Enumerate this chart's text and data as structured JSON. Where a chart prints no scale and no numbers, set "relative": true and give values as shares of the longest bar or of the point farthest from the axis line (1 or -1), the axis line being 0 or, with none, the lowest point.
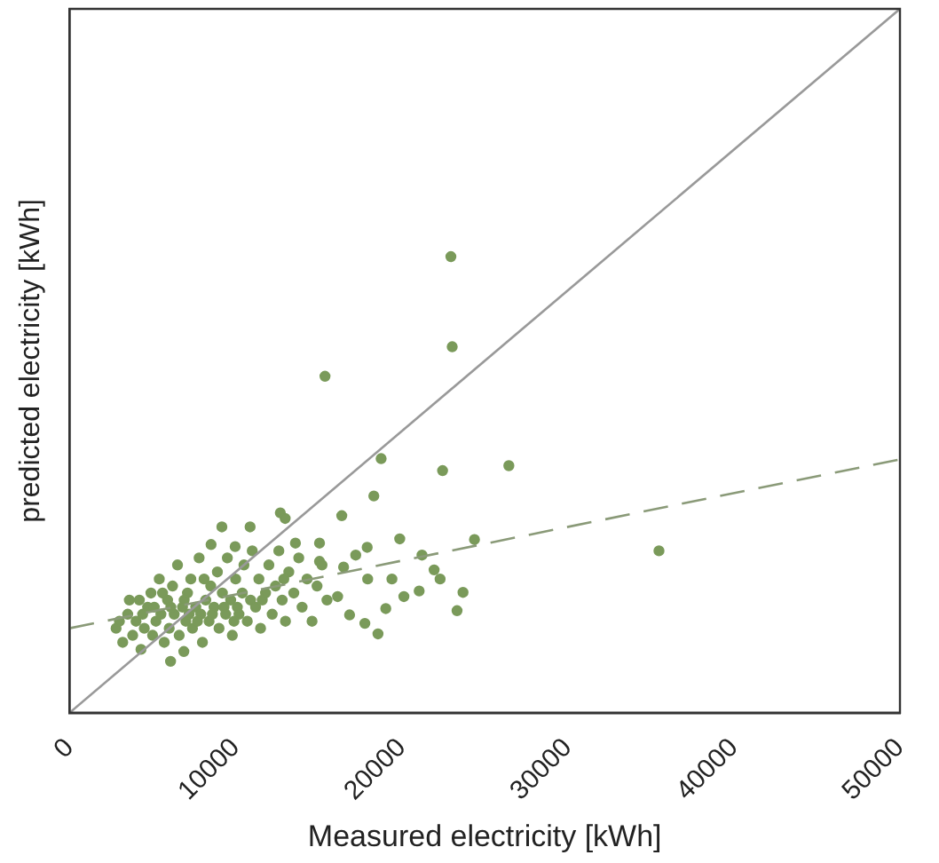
{
  "chart_data": {
    "type": "scatter",
    "xlabel": "Measured electricity [kWh]",
    "ylabel": "predicted electricity [kWh]",
    "relative": true,
    "tick_labels": "x",
    "xlim": [
      0,
      50000
    ],
    "xticks": [
      0,
      10000,
      20000,
      30000,
      40000,
      50000
    ],
    "series": [
      {
        "type": "scatter",
        "color": "#7a9a5a",
        "marker": "circle",
        "x": [
          22960,
          23040,
          15380,
          18760,
          22460,
          26450,
          18320,
          16390,
          35490,
          24380,
          19880,
          17920,
          12690,
          12980,
          9170,
          10870,
          23330,
          23690,
          18570,
          6080,
          6880,
          13600,
          8520,
          9970,
          15050,
          21220,
          21950,
          22310,
          21050,
          20130,
          19040,
          17780,
          16860,
          16140,
          17950,
          19410,
          16500,
          15050,
          17230,
          2800,
          3200,
          3500,
          3800,
          4000,
          4200,
          4300,
          4500,
          4700,
          4900,
          5000,
          5200,
          5400,
          5500,
          5700,
          5900,
          6000,
          6200,
          6300,
          6500,
          6600,
          6800,
          7000,
          7100,
          7300,
          7400,
          7600,
          7800,
          7900,
          8000,
          8200,
          8400,
          8500,
          8700,
          8900,
          9000,
          9200,
          9400,
          9500,
          9700,
          9800,
          10000,
          10200,
          10400,
          10500,
          10700,
          10900,
          11000,
          11200,
          11400,
          11500,
          11800,
          12000,
          12200,
          12400,
          12600,
          12800,
          13000,
          13200,
          13500,
          13800,
          14000,
          14300,
          14600,
          14900,
          15200,
          15500,
          5600,
          6100,
          6900,
          7700,
          8600,
          9300,
          10100,
          4400,
          3000,
          3600,
          5100,
          7200,
          8100,
          9900,
          11600,
          12900
        ],
        "values": [
          0.648,
          0.52,
          0.478,
          0.361,
          0.344,
          0.351,
          0.308,
          0.28,
          0.23,
          0.246,
          0.247,
          0.235,
          0.284,
          0.276,
          0.264,
          0.264,
          0.145,
          0.171,
          0.112,
          0.073,
          0.087,
          0.241,
          0.239,
          0.236,
          0.241,
          0.224,
          0.203,
          0.19,
          0.173,
          0.165,
          0.148,
          0.127,
          0.139,
          0.165,
          0.19,
          0.19,
          0.207,
          0.215,
          0.224,
          0.12,
          0.1,
          0.14,
          0.11,
          0.13,
          0.16,
          0.09,
          0.12,
          0.15,
          0.17,
          0.11,
          0.13,
          0.19,
          0.14,
          0.1,
          0.16,
          0.12,
          0.18,
          0.14,
          0.21,
          0.11,
          0.15,
          0.13,
          0.17,
          0.19,
          0.12,
          0.15,
          0.22,
          0.14,
          0.1,
          0.16,
          0.13,
          0.18,
          0.15,
          0.2,
          0.12,
          0.17,
          0.14,
          0.22,
          0.16,
          0.11,
          0.19,
          0.14,
          0.17,
          0.21,
          0.13,
          0.16,
          0.23,
          0.15,
          0.19,
          0.12,
          0.17,
          0.21,
          0.14,
          0.18,
          0.23,
          0.16,
          0.13,
          0.2,
          0.17,
          0.22,
          0.15,
          0.19,
          0.13,
          0.18,
          0.21,
          0.16,
          0.17,
          0.15,
          0.16,
          0.13,
          0.14,
          0.15,
          0.15,
          0.14,
          0.13,
          0.16,
          0.15,
          0.14,
          0.19,
          0.13,
          0.16,
          0.19
        ]
      },
      {
        "type": "line",
        "color": "#999999",
        "line_style": "solid",
        "marker": "none",
        "x": [
          0,
          50000
        ],
        "values": [
          0,
          1
        ]
      },
      {
        "type": "line",
        "color": "#8a9a78",
        "line_style": "dashed",
        "marker": "none",
        "x": [
          0,
          50000
        ],
        "values": [
          0.12,
          0.36
        ]
      }
    ]
  }
}
